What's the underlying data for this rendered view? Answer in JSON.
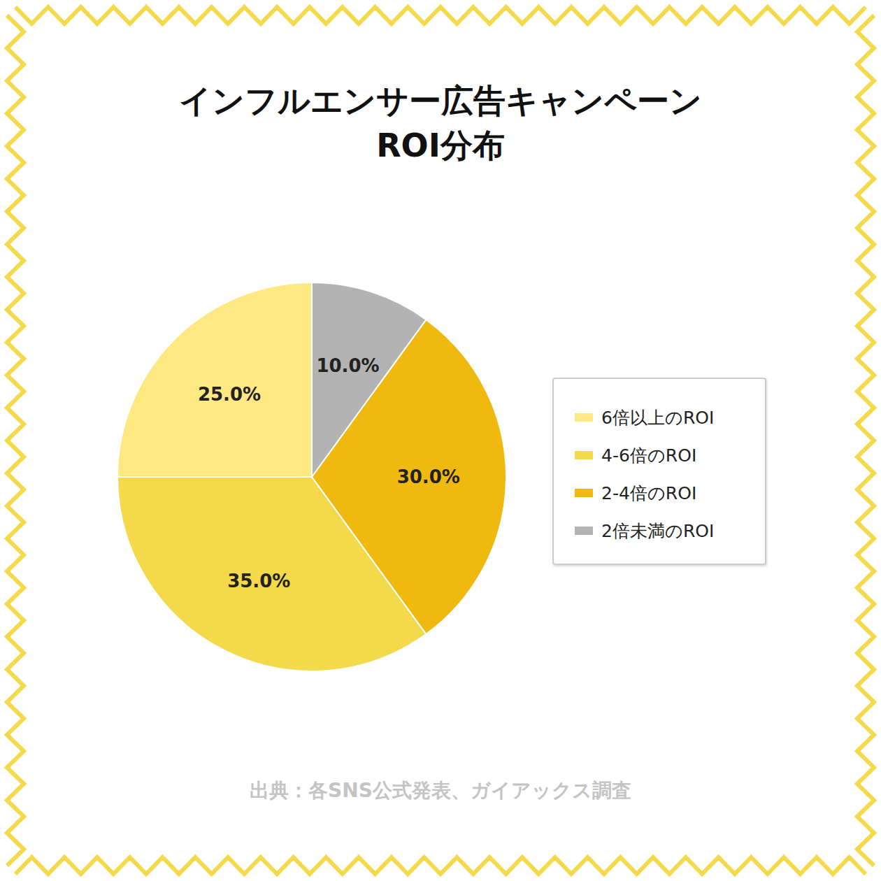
{
  "chart_data": {
    "type": "pie",
    "title": "インフルエンサー広告キャンペーン\nROI分布",
    "categories": [
      "6倍以上のROI",
      "4-6倍のROI",
      "2-4倍のROI",
      "2倍未満のROI"
    ],
    "values": [
      25,
      35,
      30,
      10
    ],
    "value_labels": [
      "25.0%",
      "35.0%",
      "30.0%",
      "10.0%"
    ],
    "colors": [
      "#fde882",
      "#f4d94b",
      "#f0b90f",
      "#b3b3b3"
    ],
    "data_labels": true,
    "legend": "right",
    "source": "出典：各SNS公式発表、ガイアックス調査"
  }
}
